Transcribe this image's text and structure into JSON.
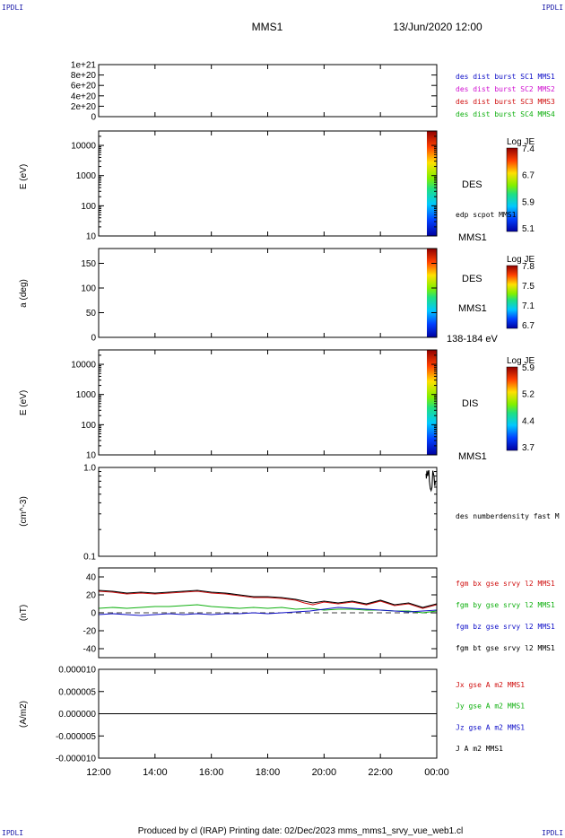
{
  "corner_label": "IPDLI",
  "header": {
    "title": "MMS1",
    "datetime": "13/Jun/2020 12:00"
  },
  "footer": "Produced by cl (IRAP)   Printing date: 02/Dec/2023   mms_mms1_srvy_vue_web1.cl",
  "time_axis": {
    "ticks": [
      "12:00",
      "14:00",
      "16:00",
      "18:00",
      "20:00",
      "22:00",
      "00:00"
    ],
    "hours": [
      12,
      14,
      16,
      18,
      20,
      22,
      24
    ],
    "range_hours": [
      12,
      24
    ]
  },
  "chart_data": [
    {
      "type": "line",
      "panel": "dist_burst",
      "ylim": [
        0,
        1e+21
      ],
      "yticks": [
        {
          "label": "1e+21",
          "value": 1e+21
        },
        {
          "label": "8e+20",
          "value": 8e+20
        },
        {
          "label": "6e+20",
          "value": 6e+20
        },
        {
          "label": "4e+20",
          "value": 4e+20
        },
        {
          "label": "2e+20",
          "value": 2e+20
        },
        {
          "label": "0",
          "value": 0
        }
      ],
      "zero_line": true,
      "series": [
        {
          "name": "des dist burst SC1 MMS1",
          "color": "#1010c8"
        },
        {
          "name": "des dist burst SC2 MMS2",
          "color": "#d010d0"
        },
        {
          "name": "des dist burst SC3 MMS3",
          "color": "#d01010"
        },
        {
          "name": "des dist burst SC4 MMS4",
          "color": "#10b010"
        }
      ]
    },
    {
      "type": "heatmap",
      "panel": "des_energy",
      "ylabel": "E (eV)",
      "yscale": "log",
      "ylim": [
        10,
        30000
      ],
      "yticks": [
        {
          "label": "10000",
          "value": 10000
        },
        {
          "label": "1000",
          "value": 1000
        },
        {
          "label": "100",
          "value": 100
        },
        {
          "label": "10",
          "value": 10
        }
      ],
      "label": "DES",
      "extra_label": "edp scpot MMS1",
      "bottom_label": "MMS1",
      "data_time_range": [
        23.65,
        24.0
      ],
      "colorbar": {
        "title": "Log JE",
        "ticks": [
          "7.4",
          "6.7",
          "5.9",
          "5.1"
        ]
      }
    },
    {
      "type": "heatmap",
      "panel": "des_pitch",
      "ylabel": "a (deg)",
      "ylim": [
        0,
        180
      ],
      "yticks": [
        {
          "label": "150",
          "value": 150
        },
        {
          "label": "100",
          "value": 100
        },
        {
          "label": "50",
          "value": 50
        },
        {
          "label": "0",
          "value": 0
        }
      ],
      "label": "DES",
      "sub_label": "MMS1",
      "bottom_label": "138-184 eV",
      "data_time_range": [
        23.65,
        24.0
      ],
      "colorbar": {
        "title": "Log JE",
        "ticks": [
          "7.8",
          "7.5",
          "7.1",
          "6.7"
        ]
      }
    },
    {
      "type": "heatmap",
      "panel": "dis_energy",
      "ylabel": "E (eV)",
      "yscale": "log",
      "ylim": [
        10,
        30000
      ],
      "yticks": [
        {
          "label": "10000",
          "value": 10000
        },
        {
          "label": "1000",
          "value": 1000
        },
        {
          "label": "100",
          "value": 100
        },
        {
          "label": "10",
          "value": 10
        }
      ],
      "label": "DIS",
      "bottom_label": "MMS1",
      "data_time_range": [
        23.65,
        24.0
      ],
      "colorbar": {
        "title": "Log JE",
        "ticks": [
          "5.9",
          "5.2",
          "4.4",
          "3.7"
        ]
      }
    },
    {
      "type": "line",
      "panel": "density",
      "ylabel": "(cm^-3)",
      "yscale": "log",
      "ylim": [
        0.1,
        1.0
      ],
      "yticks": [
        {
          "label": "1.0",
          "value": 1.0
        },
        {
          "label": "0.1",
          "value": 0.1
        }
      ],
      "series": [
        {
          "name": "des numberdensity fast M",
          "color": "#000000",
          "x": [
            23.62,
            23.63,
            23.65,
            23.68,
            23.7,
            23.72,
            23.74,
            23.77,
            23.8,
            23.83,
            23.86,
            23.9,
            23.93,
            23.95
          ],
          "y": [
            0.85,
            0.75,
            0.92,
            0.8,
            0.9,
            0.93,
            0.7,
            0.58,
            0.55,
            0.6,
            0.92,
            0.8,
            0.62,
            0.7
          ]
        }
      ]
    },
    {
      "type": "line",
      "panel": "fgm",
      "ylabel": "(nT)",
      "ylim": [
        -50,
        50
      ],
      "yticks": [
        {
          "label": "40",
          "value": 40
        },
        {
          "label": "20",
          "value": 20
        },
        {
          "label": "0",
          "value": 0
        },
        {
          "label": "-20",
          "value": -20
        },
        {
          "label": "-40",
          "value": -40
        }
      ],
      "zero_line": true,
      "series": [
        {
          "name": "fgm bx gse srvy l2 MMS1",
          "color": "#d01010",
          "x": [
            12,
            12.5,
            13,
            13.5,
            14,
            14.5,
            15,
            15.5,
            16,
            16.5,
            17,
            17.5,
            18,
            18.5,
            19,
            19.3,
            19.6,
            20,
            20.5,
            21,
            21.5,
            22,
            22.5,
            23,
            23.5,
            24
          ],
          "y": [
            24,
            23,
            21,
            22,
            21,
            22,
            23,
            24,
            22,
            21,
            19,
            17,
            17,
            16,
            14,
            11,
            9,
            12,
            10,
            12,
            9,
            13,
            8,
            10,
            5,
            9
          ]
        },
        {
          "name": "fgm by gse srvy l2 MMS1",
          "color": "#10b010",
          "x": [
            12,
            12.5,
            13,
            13.5,
            14,
            14.5,
            15,
            15.5,
            16,
            16.5,
            17,
            17.5,
            18,
            18.5,
            19,
            19.5,
            20,
            20.5,
            21,
            21.5,
            22,
            22.5,
            23,
            23.5,
            24
          ],
          "y": [
            5,
            6,
            5,
            6,
            7,
            7,
            8,
            9,
            7,
            6,
            5,
            6,
            5,
            6,
            4,
            5,
            3,
            4,
            4,
            3,
            3,
            2,
            2,
            0,
            2
          ]
        },
        {
          "name": "fgm bz gse srvy l2 MMS1",
          "color": "#1010c8",
          "x": [
            12,
            12.5,
            13,
            13.5,
            14,
            14.5,
            15,
            15.5,
            16,
            16.5,
            17,
            17.5,
            18,
            18.5,
            19,
            19.5,
            20,
            20.5,
            21,
            21.5,
            22,
            22.5,
            23,
            23.5,
            24
          ],
          "y": [
            -2,
            -1,
            -2,
            -3,
            -2,
            -1,
            -2,
            -1,
            -2,
            -1,
            -1,
            0,
            -1,
            0,
            1,
            2,
            4,
            6,
            5,
            4,
            3,
            2,
            1,
            2,
            3
          ]
        },
        {
          "name": "fgm bt gse srvy l2 MMS1",
          "color": "#000000",
          "x": [
            12,
            12.5,
            13,
            13.5,
            14,
            14.5,
            15,
            15.5,
            16,
            16.5,
            17,
            17.5,
            18,
            18.5,
            19,
            19.3,
            19.6,
            20,
            20.5,
            21,
            21.5,
            22,
            22.5,
            23,
            23.5,
            24
          ],
          "y": [
            25,
            24,
            22,
            23,
            22,
            23,
            24,
            25,
            23,
            22,
            20,
            18,
            18,
            17,
            15,
            13,
            11,
            13,
            11,
            13,
            10,
            14,
            9,
            11,
            6,
            10
          ]
        }
      ]
    },
    {
      "type": "line",
      "panel": "current",
      "ylabel": "(A/m2)",
      "ylim": [
        -1e-05,
        1e-05
      ],
      "yticks": [
        {
          "label": "0.000010",
          "value": 1e-05
        },
        {
          "label": "0.000005",
          "value": 5e-06
        },
        {
          "label": "0.000000",
          "value": 0
        },
        {
          "label": "-0.000005",
          "value": -5e-06
        },
        {
          "label": "-0.000010",
          "value": -1e-05
        }
      ],
      "series": [
        {
          "name": "Jx gse A m2 MMS1",
          "color": "#d01010"
        },
        {
          "name": "Jy gse A m2 MMS1",
          "color": "#10b010"
        },
        {
          "name": "Jz gse A m2 MMS1",
          "color": "#1010c8"
        },
        {
          "name": "J A m2 MMS1",
          "color": "#000000",
          "x": [
            12,
            24
          ],
          "y": [
            0,
            0
          ]
        }
      ]
    }
  ]
}
